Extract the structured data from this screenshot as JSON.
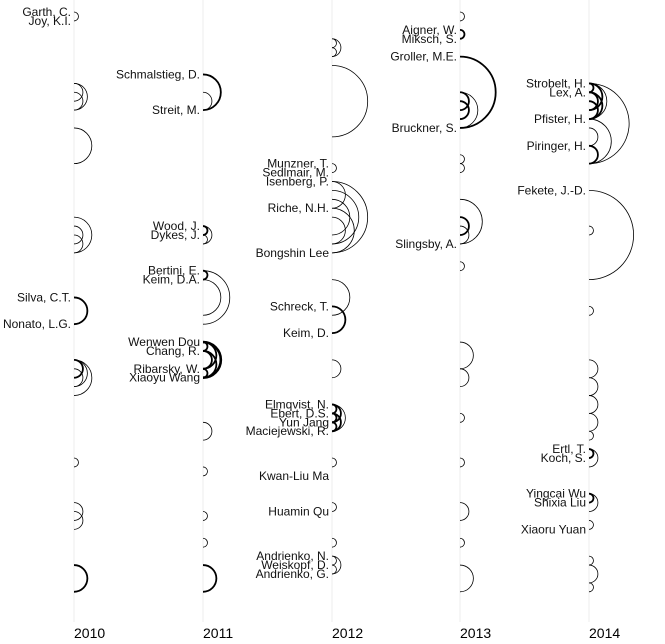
{
  "years": [
    "2010",
    "2011",
    "2012",
    "2013",
    "2014"
  ],
  "columns": [
    {
      "year": "2010",
      "authors": [
        {
          "name": "Garth, C.",
          "row": 0
        },
        {
          "name": "Joy, K.I.",
          "row": 1
        },
        {
          "name": "Silva, C.T.",
          "row": 32
        },
        {
          "name": "Nonato, L.G.",
          "row": 35
        }
      ],
      "arcs": [
        {
          "a": 0,
          "b": 1,
          "w": 1
        },
        {
          "a": 8,
          "b": 10,
          "w": 1
        },
        {
          "a": 8,
          "b": 11,
          "w": 1
        },
        {
          "a": 9,
          "b": 11,
          "w": 1
        },
        {
          "a": 13,
          "b": 17,
          "w": 1
        },
        {
          "a": 24,
          "b": 26,
          "w": 1
        },
        {
          "a": 23,
          "b": 27,
          "w": 1
        },
        {
          "a": 25,
          "b": 27,
          "w": 1
        },
        {
          "a": 32,
          "b": 35,
          "w": 2
        },
        {
          "a": 39,
          "b": 41,
          "w": 2
        },
        {
          "a": 39,
          "b": 42,
          "w": 1
        },
        {
          "a": 40,
          "b": 42,
          "w": 1
        },
        {
          "a": 39,
          "b": 43,
          "w": 1
        },
        {
          "a": 50,
          "b": 51,
          "w": 1
        },
        {
          "a": 55,
          "b": 57,
          "w": 1
        },
        {
          "a": 56,
          "b": 58,
          "w": 1
        },
        {
          "a": 62,
          "b": 65,
          "w": 2
        }
      ]
    },
    {
      "year": "2011",
      "authors": [
        {
          "name": "Schmalstieg, D.",
          "row": 7
        },
        {
          "name": "Streit, M.",
          "row": 11
        },
        {
          "name": "Wood, J.",
          "row": 24
        },
        {
          "name": "Dykes, J.",
          "row": 25
        },
        {
          "name": "Bertini, E.",
          "row": 29
        },
        {
          "name": "Keim, D.A.",
          "row": 30
        },
        {
          "name": "Wenwen Dou",
          "row": 37
        },
        {
          "name": "Chang, R.",
          "row": 38
        },
        {
          "name": "Ribarsky, W.",
          "row": 40
        },
        {
          "name": "Xiaoyu Wang",
          "row": 41
        }
      ],
      "arcs": [
        {
          "a": 7,
          "b": 11,
          "w": 2
        },
        {
          "a": 9,
          "b": 11,
          "w": 1
        },
        {
          "a": 24,
          "b": 25,
          "w": 2
        },
        {
          "a": 24,
          "b": 26,
          "w": 1
        },
        {
          "a": 25,
          "b": 26,
          "w": 1
        },
        {
          "a": 29,
          "b": 30,
          "w": 2
        },
        {
          "a": 29,
          "b": 35,
          "w": 1
        },
        {
          "a": 30,
          "b": 34,
          "w": 1
        },
        {
          "a": 37,
          "b": 38,
          "w": 2
        },
        {
          "a": 37,
          "b": 40,
          "w": 2
        },
        {
          "a": 37,
          "b": 41,
          "w": 3
        },
        {
          "a": 38,
          "b": 40,
          "w": 2
        },
        {
          "a": 38,
          "b": 41,
          "w": 2
        },
        {
          "a": 40,
          "b": 41,
          "w": 2
        },
        {
          "a": 46,
          "b": 48,
          "w": 1
        },
        {
          "a": 51,
          "b": 52,
          "w": 1
        },
        {
          "a": 56,
          "b": 57,
          "w": 1
        },
        {
          "a": 59,
          "b": 60,
          "w": 1
        },
        {
          "a": 62,
          "b": 65,
          "w": 2
        }
      ]
    },
    {
      "year": "2012",
      "authors": [
        {
          "name": "Munzner, T.",
          "row": 17
        },
        {
          "name": "Sedlmair, M.",
          "row": 18
        },
        {
          "name": "Isenberg, P.",
          "row": 19
        },
        {
          "name": "Riche, N.H.",
          "row": 22
        },
        {
          "name": "Bongshin Lee",
          "row": 27
        },
        {
          "name": "Schreck, T.",
          "row": 33
        },
        {
          "name": "Keim, D.",
          "row": 36
        },
        {
          "name": "Elmqvist, N.",
          "row": 44
        },
        {
          "name": "Ebert, D.S.",
          "row": 45
        },
        {
          "name": "Yun Jang",
          "row": 46
        },
        {
          "name": "Maciejewski, R.",
          "row": 47
        },
        {
          "name": "Kwan-Liu Ma",
          "row": 52
        },
        {
          "name": "Huamin Qu",
          "row": 56
        },
        {
          "name": "Andrienko, N.",
          "row": 61
        },
        {
          "name": "Weiskopf, D.",
          "row": 62
        },
        {
          "name": "Andrienko, G.",
          "row": 63
        }
      ],
      "arcs": [
        {
          "a": 3,
          "b": 4,
          "w": 1
        },
        {
          "a": 3,
          "b": 5,
          "w": 1
        },
        {
          "a": 4,
          "b": 5,
          "w": 1
        },
        {
          "a": 6,
          "b": 14,
          "w": 1
        },
        {
          "a": 17,
          "b": 18,
          "w": 1
        },
        {
          "a": 19,
          "b": 22,
          "w": 1
        },
        {
          "a": 19,
          "b": 27,
          "w": 1
        },
        {
          "a": 20,
          "b": 26,
          "w": 1
        },
        {
          "a": 21,
          "b": 25,
          "w": 1
        },
        {
          "a": 22,
          "b": 27,
          "w": 1
        },
        {
          "a": 23,
          "b": 26,
          "w": 1
        },
        {
          "a": 30,
          "b": 34,
          "w": 1
        },
        {
          "a": 33,
          "b": 36,
          "w": 2
        },
        {
          "a": 39,
          "b": 41,
          "w": 1
        },
        {
          "a": 44,
          "b": 45,
          "w": 2
        },
        {
          "a": 44,
          "b": 46,
          "w": 2
        },
        {
          "a": 44,
          "b": 47,
          "w": 1
        },
        {
          "a": 45,
          "b": 46,
          "w": 2
        },
        {
          "a": 45,
          "b": 47,
          "w": 2
        },
        {
          "a": 46,
          "b": 47,
          "w": 2
        },
        {
          "a": 50,
          "b": 51,
          "w": 1
        },
        {
          "a": 55,
          "b": 56,
          "w": 1
        },
        {
          "a": 59,
          "b": 60,
          "w": 1
        },
        {
          "a": 61,
          "b": 62,
          "w": 1
        },
        {
          "a": 61,
          "b": 63,
          "w": 1
        },
        {
          "a": 62,
          "b": 63,
          "w": 1
        }
      ]
    },
    {
      "year": "2013",
      "authors": [
        {
          "name": "Aigner, W.",
          "row": 2
        },
        {
          "name": "Miksch, S.",
          "row": 3
        },
        {
          "name": "Groller, M.E.",
          "row": 5
        },
        {
          "name": "Bruckner, S.",
          "row": 13
        },
        {
          "name": "Slingsby, A.",
          "row": 26
        }
      ],
      "arcs": [
        {
          "a": 0,
          "b": 1,
          "w": 1
        },
        {
          "a": 2,
          "b": 3,
          "w": 2
        },
        {
          "a": 5,
          "b": 13,
          "w": 2
        },
        {
          "a": 9,
          "b": 11,
          "w": 2
        },
        {
          "a": 9,
          "b": 13,
          "w": 1
        },
        {
          "a": 10,
          "b": 12,
          "w": 2
        },
        {
          "a": 16,
          "b": 17,
          "w": 1
        },
        {
          "a": 17,
          "b": 18,
          "w": 1
        },
        {
          "a": 21,
          "b": 26,
          "w": 1
        },
        {
          "a": 23,
          "b": 25,
          "w": 2
        },
        {
          "a": 24,
          "b": 26,
          "w": 1
        },
        {
          "a": 28,
          "b": 29,
          "w": 1
        },
        {
          "a": 37,
          "b": 40,
          "w": 1
        },
        {
          "a": 40,
          "b": 42,
          "w": 1
        },
        {
          "a": 45,
          "b": 46,
          "w": 1
        },
        {
          "a": 50,
          "b": 51,
          "w": 1
        },
        {
          "a": 55,
          "b": 57,
          "w": 1
        },
        {
          "a": 59,
          "b": 60,
          "w": 1
        },
        {
          "a": 62,
          "b": 65,
          "w": 1
        }
      ]
    },
    {
      "year": "2014",
      "authors": [
        {
          "name": "Strobelt, H.",
          "row": 8
        },
        {
          "name": "Lex, A.",
          "row": 9
        },
        {
          "name": "Pfister, H.",
          "row": 12
        },
        {
          "name": "Piringer, H.",
          "row": 15
        },
        {
          "name": "Fekete, J.-D.",
          "row": 20
        },
        {
          "name": "Ertl, T.",
          "row": 49
        },
        {
          "name": "Koch, S.",
          "row": 50
        },
        {
          "name": "Yingcai Wu",
          "row": 54
        },
        {
          "name": "Shixia Liu",
          "row": 55
        },
        {
          "name": "Xiaoru Yuan",
          "row": 58
        }
      ],
      "arcs": [
        {
          "a": 8,
          "b": 9,
          "w": 2
        },
        {
          "a": 8,
          "b": 11,
          "w": 2
        },
        {
          "a": 8,
          "b": 12,
          "w": 1
        },
        {
          "a": 9,
          "b": 11,
          "w": 2
        },
        {
          "a": 9,
          "b": 12,
          "w": 2
        },
        {
          "a": 10,
          "b": 12,
          "w": 2
        },
        {
          "a": 8,
          "b": 17,
          "w": 1
        },
        {
          "a": 12,
          "b": 17,
          "w": 1
        },
        {
          "a": 13,
          "b": 15,
          "w": 1
        },
        {
          "a": 15,
          "b": 17,
          "w": 2
        },
        {
          "a": 20,
          "b": 30,
          "w": 1
        },
        {
          "a": 24,
          "b": 25,
          "w": 1
        },
        {
          "a": 33,
          "b": 34,
          "w": 1
        },
        {
          "a": 39,
          "b": 41,
          "w": 1
        },
        {
          "a": 41,
          "b": 43,
          "w": 1
        },
        {
          "a": 43,
          "b": 45,
          "w": 1
        },
        {
          "a": 45,
          "b": 47,
          "w": 1
        },
        {
          "a": 47,
          "b": 48,
          "w": 1
        },
        {
          "a": 49,
          "b": 50,
          "w": 2
        },
        {
          "a": 49,
          "b": 51,
          "w": 1
        },
        {
          "a": 54,
          "b": 55,
          "w": 2
        },
        {
          "a": 54,
          "b": 56,
          "w": 1
        },
        {
          "a": 57,
          "b": 58,
          "w": 1
        },
        {
          "a": 61,
          "b": 62,
          "w": 1
        },
        {
          "a": 62,
          "b": 64,
          "w": 1
        },
        {
          "a": 64,
          "b": 65,
          "w": 1
        }
      ]
    }
  ]
}
